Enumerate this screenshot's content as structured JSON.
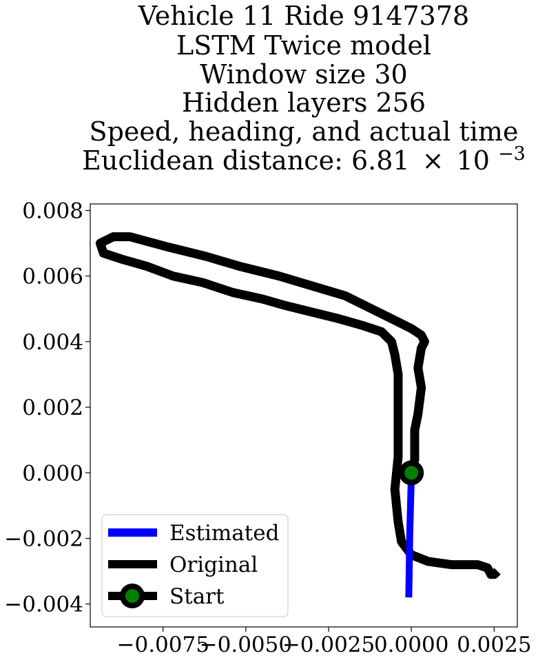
{
  "chart_data": {
    "type": "line",
    "title_lines": [
      "Vehicle 11 Ride 9147378",
      "LSTM Twice model",
      "Window size 30",
      "Hidden layers 256",
      "Speed, heading, and actual time"
    ],
    "title_distance_prefix": "Euclidean distance: 6.81",
    "title_distance_times": "×",
    "title_distance_base": "10",
    "title_distance_exp": "−3",
    "xlim": [
      -0.0097,
      0.0032
    ],
    "ylim": [
      -0.0047,
      0.0082
    ],
    "xticks": [
      {
        "value": -0.0075,
        "label": "−0.0075"
      },
      {
        "value": -0.005,
        "label": "−0.0050"
      },
      {
        "value": -0.0025,
        "label": "−0.0025"
      },
      {
        "value": 0.0,
        "label": "0.0000"
      },
      {
        "value": 0.0025,
        "label": "0.0025"
      }
    ],
    "yticks": [
      {
        "value": 0.008,
        "label": "0.008"
      },
      {
        "value": 0.006,
        "label": "0.006"
      },
      {
        "value": 0.004,
        "label": "0.004"
      },
      {
        "value": 0.002,
        "label": "0.002"
      },
      {
        "value": 0.0,
        "label": "0.000"
      },
      {
        "value": -0.002,
        "label": "−0.002"
      },
      {
        "value": -0.004,
        "label": "−0.004"
      }
    ],
    "legend_position": "lower-left",
    "series": [
      {
        "name": "Estimated",
        "color": "#0000ff",
        "x": [
          0.0,
          -5e-05,
          -8e-05
        ],
        "y": [
          0.0,
          -0.0019,
          -0.0038
        ]
      },
      {
        "name": "Original",
        "color": "#000000",
        "x": [
          0.0,
          0.0001,
          0.0001,
          0.0001,
          0.0002,
          0.0003,
          0.0002,
          0.0003,
          0.0004,
          0.0003,
          0.0,
          -0.0006,
          -0.0012,
          -0.002,
          -0.003,
          -0.004,
          -0.0052,
          -0.0062,
          -0.0074,
          -0.0085,
          -0.009,
          -0.0094,
          -0.0093,
          -0.009,
          -0.0087,
          -0.008,
          -0.0072,
          -0.0063,
          -0.0054,
          -0.0045,
          -0.0038,
          -0.003,
          -0.0022,
          -0.0015,
          -0.0009,
          -0.0006,
          -0.0005,
          -0.0004,
          -0.0004,
          -0.0004,
          -0.0004,
          -0.0004,
          -0.0005,
          -0.0004,
          -0.0003,
          0.0,
          0.0005,
          0.0012,
          0.002,
          0.0023,
          0.0024,
          0.0025,
          0.0026
        ],
        "y": [
          0.0,
          0.0004,
          0.0009,
          0.0013,
          0.0018,
          0.0026,
          0.0032,
          0.0038,
          0.004,
          0.0042,
          0.0044,
          0.0047,
          0.005,
          0.0054,
          0.0057,
          0.006,
          0.0063,
          0.0066,
          0.0069,
          0.0072,
          0.0072,
          0.007,
          0.0067,
          0.0066,
          0.0065,
          0.0063,
          0.006,
          0.0058,
          0.0055,
          0.0053,
          0.0051,
          0.0049,
          0.0047,
          0.0045,
          0.0043,
          0.004,
          0.0036,
          0.003,
          0.0024,
          0.0018,
          0.0012,
          0.0005,
          -0.0005,
          -0.0015,
          -0.0021,
          -0.0025,
          -0.0027,
          -0.0028,
          -0.0028,
          -0.0029,
          -0.0031,
          -0.0031,
          -0.003
        ]
      },
      {
        "name": "Start",
        "marker": "circle",
        "marker_face": "#008000",
        "marker_edge": "#000000",
        "x": [
          0.0
        ],
        "y": [
          0.0
        ]
      }
    ]
  }
}
